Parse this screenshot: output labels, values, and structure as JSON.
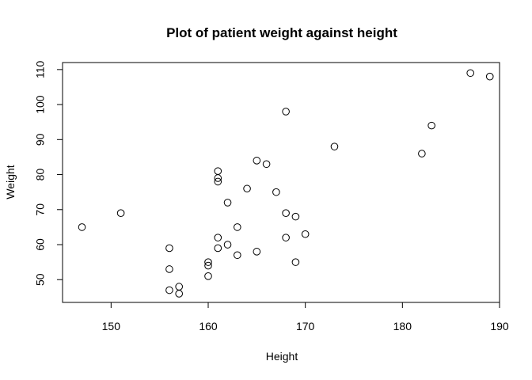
{
  "chart_data": {
    "type": "scatter",
    "title": "Plot of patient weight against height",
    "xlabel": "Height",
    "ylabel": "Weight",
    "xlim": [
      145,
      190
    ],
    "ylim": [
      43.5,
      112
    ],
    "xticks": [
      150,
      160,
      170,
      180,
      190
    ],
    "yticks": [
      50,
      60,
      70,
      80,
      90,
      100,
      110
    ],
    "grid": false,
    "points": [
      {
        "x": 147,
        "y": 65
      },
      {
        "x": 151,
        "y": 69
      },
      {
        "x": 156,
        "y": 59
      },
      {
        "x": 156,
        "y": 53
      },
      {
        "x": 156,
        "y": 47
      },
      {
        "x": 157,
        "y": 48
      },
      {
        "x": 157,
        "y": 46
      },
      {
        "x": 160,
        "y": 55
      },
      {
        "x": 160,
        "y": 54
      },
      {
        "x": 160,
        "y": 51
      },
      {
        "x": 161,
        "y": 81
      },
      {
        "x": 161,
        "y": 79
      },
      {
        "x": 161,
        "y": 78
      },
      {
        "x": 161,
        "y": 62
      },
      {
        "x": 161,
        "y": 59
      },
      {
        "x": 162,
        "y": 72
      },
      {
        "x": 162,
        "y": 60
      },
      {
        "x": 163,
        "y": 65
      },
      {
        "x": 163,
        "y": 57
      },
      {
        "x": 164,
        "y": 76
      },
      {
        "x": 165,
        "y": 84
      },
      {
        "x": 165,
        "y": 58
      },
      {
        "x": 166,
        "y": 83
      },
      {
        "x": 167,
        "y": 75
      },
      {
        "x": 168,
        "y": 98
      },
      {
        "x": 168,
        "y": 69
      },
      {
        "x": 168,
        "y": 62
      },
      {
        "x": 169,
        "y": 68
      },
      {
        "x": 169,
        "y": 55
      },
      {
        "x": 170,
        "y": 63
      },
      {
        "x": 173,
        "y": 88
      },
      {
        "x": 182,
        "y": 86
      },
      {
        "x": 183,
        "y": 94
      },
      {
        "x": 187,
        "y": 109
      },
      {
        "x": 189,
        "y": 108
      }
    ]
  }
}
